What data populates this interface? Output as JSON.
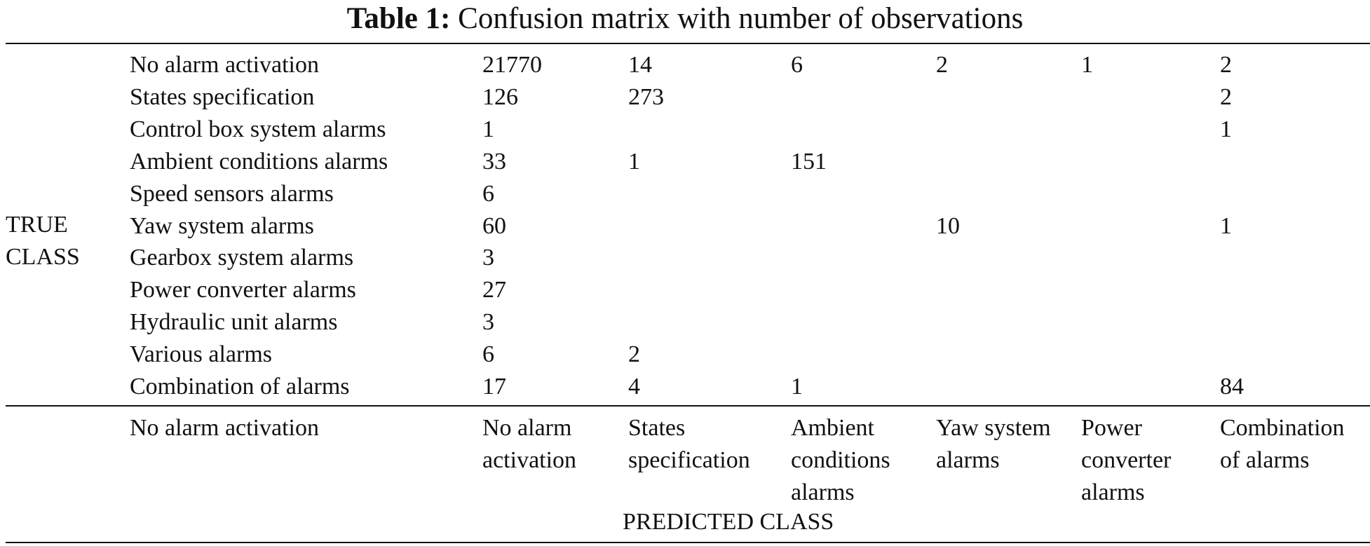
{
  "caption": {
    "label": "Table 1:",
    "text": "Confusion matrix with number of observations"
  },
  "true_class_label": [
    "TRUE",
    "CLASS"
  ],
  "rows": [
    {
      "label": "No alarm activation",
      "values": [
        "21770",
        "14",
        "6",
        "2",
        "1",
        "2"
      ]
    },
    {
      "label": "States specification",
      "values": [
        "126",
        "273",
        "",
        "",
        "",
        "2"
      ]
    },
    {
      "label": "Control box system alarms",
      "values": [
        "1",
        "",
        "",
        "",
        "",
        "1"
      ]
    },
    {
      "label": "Ambient conditions alarms",
      "values": [
        "33",
        "1",
        "151",
        "",
        "",
        ""
      ]
    },
    {
      "label": "Speed sensors alarms",
      "values": [
        "6",
        "",
        "",
        "",
        "",
        ""
      ]
    },
    {
      "label": "Yaw system alarms",
      "values": [
        "60",
        "",
        "",
        "10",
        "",
        "1"
      ]
    },
    {
      "label": "Gearbox system alarms",
      "values": [
        "3",
        "",
        "",
        "",
        "",
        ""
      ]
    },
    {
      "label": "Power converter alarms",
      "values": [
        "27",
        "",
        "",
        "",
        "",
        ""
      ]
    },
    {
      "label": "Hydraulic unit alarms",
      "values": [
        "3",
        "",
        "",
        "",
        "",
        ""
      ]
    },
    {
      "label": "Various alarms",
      "values": [
        "6",
        "2",
        "",
        "",
        "",
        ""
      ]
    },
    {
      "label": "Combination of alarms",
      "values": [
        "17",
        "4",
        "1",
        "",
        "",
        "84"
      ]
    }
  ],
  "footer": {
    "row_label": "No alarm activation",
    "column_headers": [
      "No alarm\nactivation",
      "States\nspecification",
      "Ambient\nconditions\nalarms",
      "Yaw system\nalarms",
      "Power\nconverter\nalarms",
      "Combination\nof alarms"
    ],
    "predicted_class_label": "PREDICTED CLASS"
  }
}
